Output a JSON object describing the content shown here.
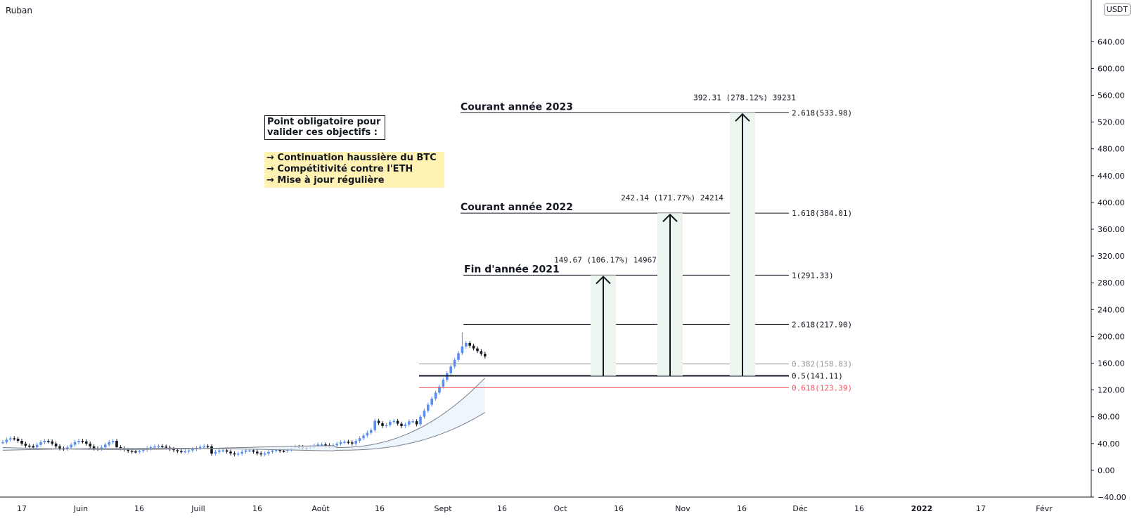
{
  "header": {
    "symbol": "Ruban",
    "currency": "USDT"
  },
  "chart_data": {
    "type": "candlestick",
    "y_ticks": [
      "640.00",
      "600.00",
      "560.00",
      "520.00",
      "480.00",
      "440.00",
      "400.00",
      "360.00",
      "320.00",
      "280.00",
      "240.00",
      "200.00",
      "160.00",
      "120.00",
      "80.00",
      "40.00",
      "0.00",
      "−40.00"
    ],
    "x_ticks": [
      "17",
      "Juin",
      "16",
      "Juill",
      "16",
      "Août",
      "16",
      "Sept",
      "16",
      "Oct",
      "16",
      "Nov",
      "16",
      "Déc",
      "16",
      "2022",
      "17",
      "Févr"
    ],
    "ylim": [
      -40,
      660
    ],
    "fib_levels": [
      {
        "label": "2.618(533.98)",
        "value": 533.98,
        "color": "#131722"
      },
      {
        "label": "1.618(384.01)",
        "value": 384.01,
        "color": "#131722"
      },
      {
        "label": "1(291.33)",
        "value": 291.33,
        "color": "#131722"
      },
      {
        "label": "2.618(217.90)",
        "value": 217.9,
        "color": "#131722"
      },
      {
        "label": "0.382(158.83)",
        "value": 158.83,
        "color": "#9598a1"
      },
      {
        "label": "0.5(141.11)",
        "value": 141.11,
        "color": "#131722"
      },
      {
        "label": "0.618(123.39)",
        "value": 123.39,
        "color": "#f7525f"
      }
    ],
    "targets": [
      {
        "heading": "Courant année 2023",
        "measure": "392.31 (278.12%) 39231",
        "value": 533.98
      },
      {
        "heading": "Courant année 2022",
        "measure": "242.14 (171.77%) 24214",
        "value": 384.01
      },
      {
        "heading": "Fin d'année 2021",
        "measure": "149.67 (106.17%) 14967",
        "value": 291.33
      }
    ],
    "base_value": 141.11
  },
  "notes": {
    "box_lines": [
      "Point obligatoire pour",
      "valider ces objectifs :"
    ],
    "objectives": [
      "→ Continuation haussière du BTC",
      "→ Compétitivité contre l'ETH",
      "→ Mise à jour régulière"
    ]
  },
  "colors": {
    "up": "#5b8ef0",
    "down": "#131722",
    "ema": "#9598a1",
    "fill": "#e8f4fb",
    "measure_bg": "#ecf6ee",
    "red": "#f7525f"
  }
}
